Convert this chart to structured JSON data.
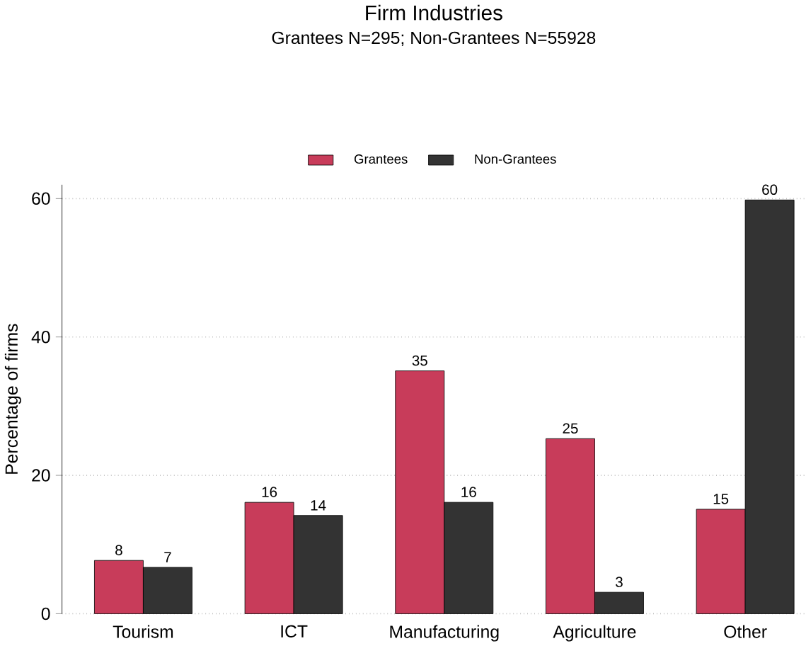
{
  "chart_data": {
    "type": "bar",
    "title": "Firm Industries",
    "subtitle": "Grantees N=295; Non-Grantees N=55928",
    "ylabel": "Percentage of firms",
    "categories": [
      "Tourism",
      "ICT",
      "Manufacturing",
      "Agriculture",
      "Other"
    ],
    "series": [
      {
        "name": "Grantees",
        "color": "#c83c5a",
        "values": [
          7.7,
          16.1,
          35.1,
          25.3,
          15.1
        ],
        "value_labels": [
          "8",
          "16",
          "35",
          "25",
          "15"
        ]
      },
      {
        "name": "Non-Grantees",
        "color": "#333333",
        "values": [
          6.7,
          14.2,
          16.1,
          3.1,
          59.8
        ],
        "value_labels": [
          "7",
          "14",
          "16",
          "3",
          "60"
        ]
      }
    ],
    "ylim": [
      0,
      62
    ],
    "yticks": [
      0,
      20,
      40,
      60
    ],
    "grid": "y",
    "legend": "top"
  }
}
